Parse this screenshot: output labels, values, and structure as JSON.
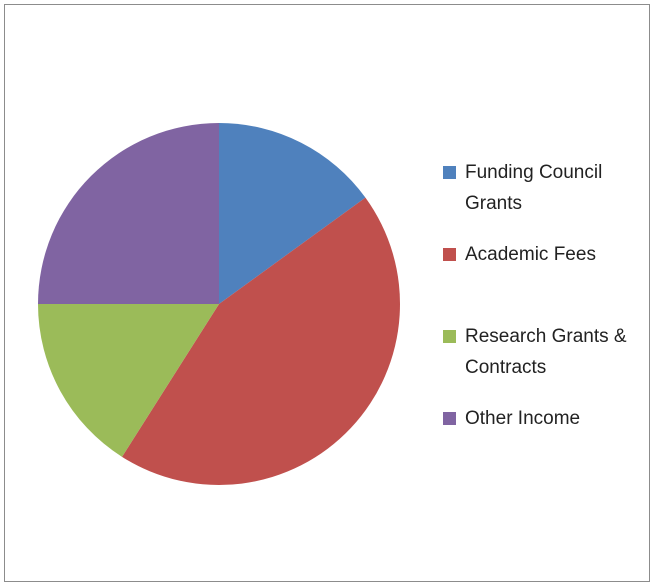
{
  "chart_data": {
    "type": "pie",
    "categories": [
      "Funding Council Grants",
      "Academic Fees",
      "Research Grants & Contracts",
      "Other Income"
    ],
    "values": [
      15,
      44,
      16,
      25
    ],
    "colors": [
      "#4f81bd",
      "#c0504d",
      "#9bbb59",
      "#8064a2"
    ],
    "legend": "right"
  }
}
